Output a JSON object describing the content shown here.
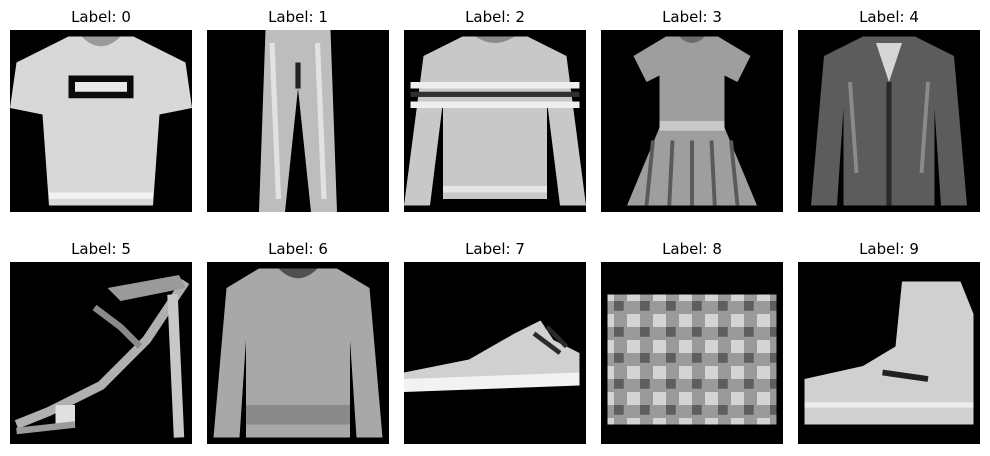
{
  "figure": {
    "panels": [
      {
        "label": "Label: 0",
        "item": "t-shirt"
      },
      {
        "label": "Label: 1",
        "item": "trouser"
      },
      {
        "label": "Label: 2",
        "item": "pullover"
      },
      {
        "label": "Label: 3",
        "item": "dress"
      },
      {
        "label": "Label: 4",
        "item": "coat"
      },
      {
        "label": "Label: 5",
        "item": "sandal"
      },
      {
        "label": "Label: 6",
        "item": "shirt"
      },
      {
        "label": "Label: 7",
        "item": "sneaker"
      },
      {
        "label": "Label: 8",
        "item": "bag"
      },
      {
        "label": "Label: 9",
        "item": "ankle-boot"
      }
    ]
  }
}
